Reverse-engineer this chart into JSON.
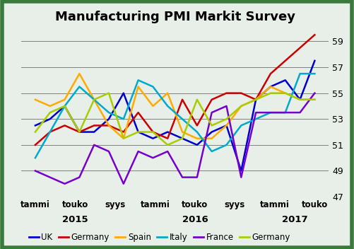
{
  "title": "Manufacturing PMI Markit Survey",
  "ylim": [
    47,
    60
  ],
  "yticks": [
    47,
    49,
    51,
    53,
    55,
    57,
    59
  ],
  "x_tick_positions": [
    0,
    2,
    4,
    6,
    8,
    10,
    12,
    14
  ],
  "x_labels": [
    "tammi",
    "touko",
    "syys",
    "tammi",
    "touko",
    "syys",
    "tammi",
    "touko"
  ],
  "year_annotations": [
    {
      "label": "2015",
      "x": 2.0
    },
    {
      "label": "2016",
      "x": 8.0
    },
    {
      "label": "2017",
      "x": 13.0
    }
  ],
  "background_color": "#e8efe8",
  "border_color": "#3a7a3a",
  "series": [
    {
      "name": "UK",
      "color": "#0000cc",
      "data": [
        52.5,
        53.0,
        54.0,
        52.0,
        52.0,
        53.0,
        55.0,
        52.0,
        51.5,
        52.0,
        51.5,
        51.0,
        52.0,
        52.5,
        49.0,
        54.5,
        55.5,
        56.0,
        54.5,
        57.5
      ]
    },
    {
      "name": "Germany",
      "color": "#cc0000",
      "data": [
        51.0,
        52.0,
        52.5,
        52.0,
        52.5,
        52.5,
        52.0,
        53.5,
        52.0,
        51.5,
        54.5,
        52.5,
        54.5,
        55.0,
        55.0,
        54.5,
        56.5,
        57.5,
        58.5,
        59.5
      ]
    },
    {
      "name": "Spain",
      "color": "#ffaa00",
      "data": [
        54.5,
        54.0,
        54.5,
        56.5,
        54.5,
        52.5,
        51.5,
        55.5,
        54.0,
        55.0,
        52.0,
        51.5,
        51.5,
        52.5,
        54.0,
        54.5,
        55.5,
        55.0,
        54.5,
        54.5
      ]
    },
    {
      "name": "Italy",
      "color": "#00aacc",
      "data": [
        50.0,
        52.0,
        54.0,
        55.5,
        54.5,
        53.5,
        53.0,
        56.0,
        55.5,
        54.0,
        53.0,
        52.0,
        50.5,
        51.0,
        52.5,
        53.0,
        53.5,
        53.5,
        56.5,
        56.5
      ]
    },
    {
      "name": "France",
      "color": "#7700cc",
      "data": [
        49.0,
        48.5,
        48.0,
        48.5,
        51.0,
        50.5,
        48.0,
        50.5,
        50.0,
        50.5,
        48.5,
        48.5,
        53.5,
        54.0,
        48.5,
        53.5,
        53.5,
        53.5,
        53.5,
        55.0
      ]
    },
    {
      "name": "Germany",
      "color": "#aacc00",
      "data": [
        52.0,
        53.5,
        54.0,
        52.0,
        54.5,
        55.0,
        51.5,
        52.0,
        52.0,
        51.0,
        51.5,
        54.5,
        52.5,
        53.0,
        54.0,
        54.5,
        55.0,
        55.0,
        54.5,
        54.5
      ]
    }
  ]
}
